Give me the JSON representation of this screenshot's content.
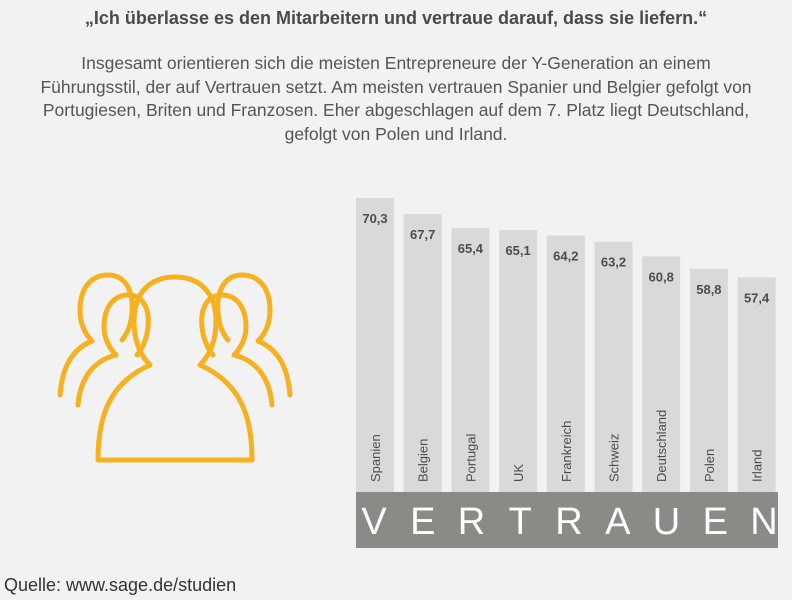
{
  "headline": "„Ich überlasse es den Mitarbeitern und vertraue darauf, dass sie liefern.“",
  "intro": "Insgesamt orientieren sich die meisten Entrepreneure der Y-Generation an einem Führungsstil, der auf Vertrauen setzt. Am meisten vertrauen Spanier und Belgier gefolgt von Portugiesen, Briten und Franzosen. Eher abgeschlagen auf dem 7. Platz liegt Deutschland, gefolgt von Polen und Irland.",
  "icon": "people-group-icon",
  "colors": {
    "background": "#f2f2f2",
    "bar": "#d9d9d9",
    "banner": "#8c8a86",
    "icon": "#f5b120",
    "text": "#4d4d4d"
  },
  "chart_data": {
    "type": "bar",
    "categories": [
      "Spanien",
      "Belgien",
      "Portugal",
      "UK",
      "Frankreich",
      "Schweiz",
      "Deutschland",
      "Polen",
      "Irland"
    ],
    "value_labels": [
      "70,3",
      "67,7",
      "65,4",
      "65,1",
      "64,2",
      "63,2",
      "60,8",
      "58,8",
      "57,4"
    ],
    "values": [
      70.3,
      67.7,
      65.4,
      65.1,
      64.2,
      63.2,
      60.8,
      58.8,
      57.4
    ],
    "banner_text": "VERTRAUEN",
    "title": "",
    "xlabel": "",
    "ylabel": ""
  },
  "source": "Quelle: www.sage.de/studien"
}
